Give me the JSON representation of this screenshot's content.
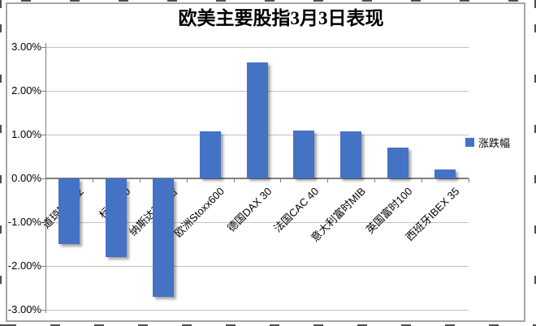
{
  "chart_data": {
    "type": "bar",
    "title": "欧美主要股指3月3日表现",
    "categories": [
      "道琼斯工业",
      "标普500",
      "纳斯达克综合",
      "欧洲Stoxx600",
      "德国DAX 30",
      "法国CAC 40",
      "意大利富时MIB",
      "英国富时100",
      "西班牙IBEX 35"
    ],
    "series": [
      {
        "name": "涨跌幅",
        "values": [
          -1.5,
          -1.8,
          -2.7,
          1.08,
          2.64,
          1.1,
          1.07,
          0.7,
          0.2
        ]
      }
    ],
    "legend": {
      "label": "涨跌幅",
      "swatch_color": "#4472c4",
      "position": "right"
    },
    "xlabel": "",
    "ylabel": "",
    "ylim": [
      -3.0,
      3.0
    ],
    "grid": true,
    "bar_color": "#4472c4",
    "y_ticks": [
      {
        "value": 3,
        "label": "3.00%"
      },
      {
        "value": 2,
        "label": "2.00%"
      },
      {
        "value": 1,
        "label": "1.00%"
      },
      {
        "value": 0,
        "label": "0.00%"
      },
      {
        "value": -1,
        "label": "-1.00%"
      },
      {
        "value": -2,
        "label": "-2.00%"
      },
      {
        "value": -3,
        "label": "-3.00%"
      }
    ]
  }
}
